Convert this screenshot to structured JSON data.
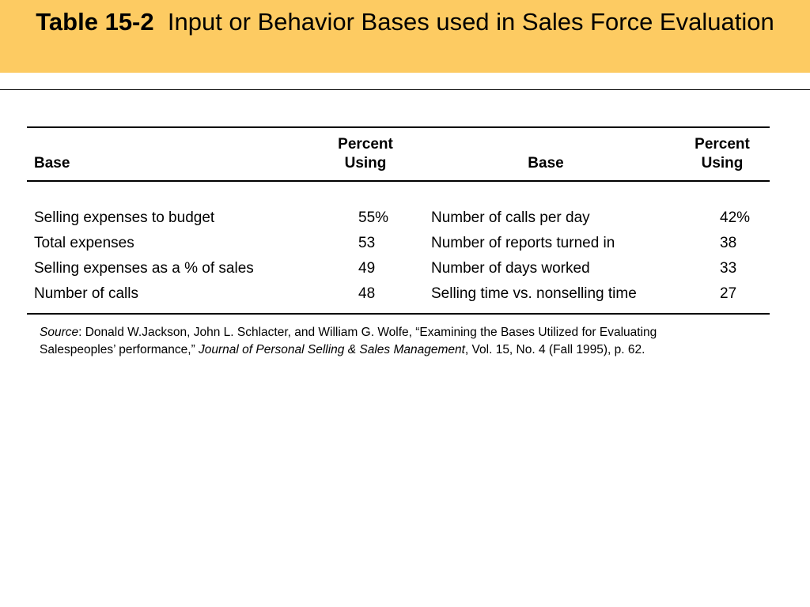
{
  "title": {
    "label": "Table 15-2",
    "text": "Input or Behavior Bases used in Sales Force Evaluation"
  },
  "table": {
    "headers": {
      "base_left": "Base",
      "percent_left_line1": "Percent",
      "percent_left_line2": "Using",
      "base_right": "Base",
      "percent_right_line1": "Percent",
      "percent_right_line2": "Using"
    },
    "rows": [
      {
        "left_base": "Selling expenses to budget",
        "left_pct": "55%",
        "right_base": "Number of calls per day",
        "right_pct": "42%"
      },
      {
        "left_base": "Total expenses",
        "left_pct": "53",
        "right_base": "Number of reports turned in",
        "right_pct": "38"
      },
      {
        "left_base": "Selling expenses as a % of sales",
        "left_pct": "49",
        "right_base": "Number of days worked",
        "right_pct": "33"
      },
      {
        "left_base": "Number of calls",
        "left_pct": "48",
        "right_base": "Selling time vs. nonselling time",
        "right_pct": "27"
      }
    ]
  },
  "source": {
    "label": "Source",
    "text1": ":  Donald W.Jackson, John L. Schlacter, and William G. Wolfe,  “Examining the Bases Utilized for Evaluating Salespeoples’ performance,”  ",
    "journal": "Journal of Personal Selling & Sales Management",
    "text2": ", Vol. 15, No. 4 (Fall 1995), p. 62."
  },
  "colors": {
    "title_band": "#fdcb62",
    "text": "#000000",
    "background": "#ffffff"
  }
}
